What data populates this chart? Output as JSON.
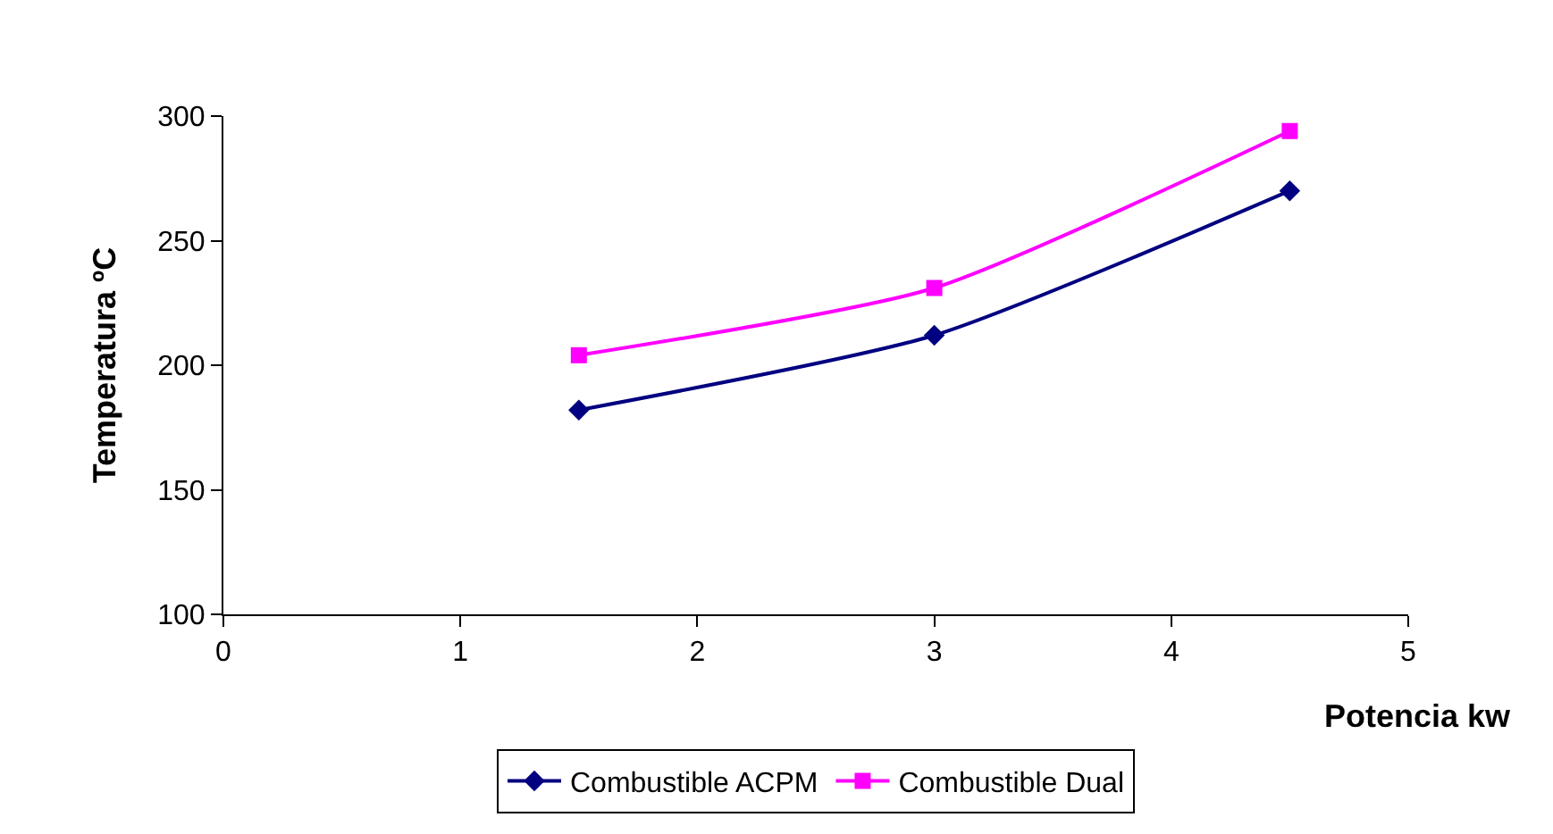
{
  "chart_data": {
    "type": "line",
    "xlabel": "Potencia kw",
    "ylabel": "Temperatura ºC",
    "x": [
      1.5,
      3,
      4.5
    ],
    "series": [
      {
        "name": "Combustible ACPM",
        "color": "#000080",
        "values": [
          182,
          212,
          270
        ],
        "marker": "diamond"
      },
      {
        "name": "Combustible Dual",
        "color": "#ff00ff",
        "values": [
          204,
          231,
          294
        ],
        "marker": "square"
      }
    ],
    "xlim": [
      0,
      5
    ],
    "xticks": [
      0,
      1,
      2,
      3,
      4,
      5
    ],
    "ylim": [
      100,
      300
    ],
    "yticks": [
      100,
      150,
      200,
      250,
      300
    ],
    "grid": false,
    "legend": "bottom",
    "line_style": "solid"
  }
}
